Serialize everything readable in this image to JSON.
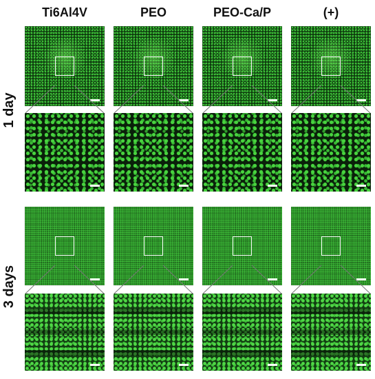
{
  "columns": [
    {
      "label": "Ti6Al4V"
    },
    {
      "label": "PEO"
    },
    {
      "label": "PEO-Ca/P"
    },
    {
      "label": "(+)"
    }
  ],
  "rows": [
    {
      "label": "1 day"
    },
    {
      "label": "3 days"
    }
  ]
}
